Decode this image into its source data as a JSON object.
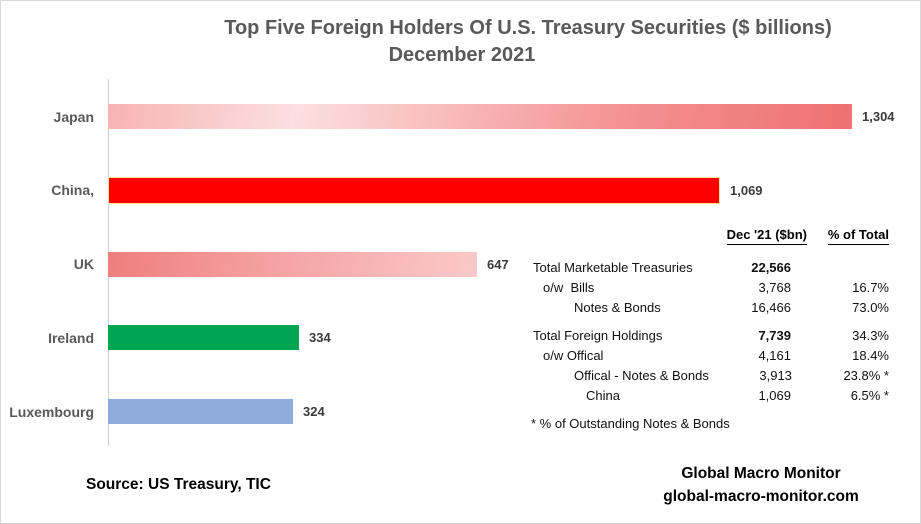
{
  "title": {
    "line1": "Top Five Foreign Holders Of U.S. Treasury Securities ($ billions)",
    "line2": "December 2021"
  },
  "chart_data": {
    "type": "bar",
    "orientation": "horizontal",
    "title": "Top Five Foreign Holders Of U.S. Treasury Securities ($ billions) December 2021",
    "xlabel": "",
    "ylabel": "",
    "xlim": [
      0,
      1400
    ],
    "grid": false,
    "legend": false,
    "categories": [
      "Japan",
      "China,",
      "UK",
      "Ireland",
      "Luxembourg"
    ],
    "values": [
      1304,
      1069,
      647,
      334,
      324
    ],
    "value_labels": [
      "1,304",
      "1,069",
      "647",
      "334",
      "324"
    ],
    "bars": [
      {
        "label": "Japan",
        "value": 1304,
        "value_label": "1,304",
        "fill": {
          "kind": "gradient",
          "angle": "100deg",
          "stops": [
            "#f7b3b3",
            "#fcdfdf 25%",
            "#f49090 70%",
            "#ee7171 100%"
          ]
        }
      },
      {
        "label": "China,",
        "value": 1069,
        "value_label": "1,069",
        "fill": {
          "kind": "solid",
          "color": "#ff0000"
        },
        "border_color": "#ffe699"
      },
      {
        "label": "UK",
        "value": 647,
        "value_label": "647",
        "fill": {
          "kind": "gradient",
          "angle": "100deg",
          "stops": [
            "#ef7e7e",
            "#f5a2a2 45%",
            "#fbc9c9 100%"
          ]
        }
      },
      {
        "label": "Ireland",
        "value": 334,
        "value_label": "334",
        "fill": {
          "kind": "solid",
          "color": "#00a551"
        }
      },
      {
        "label": "Luxembourg",
        "value": 324,
        "value_label": "324",
        "fill": {
          "kind": "solid",
          "color": "#8faadc"
        }
      }
    ]
  },
  "table": {
    "headers": {
      "value_col": "Dec '21 ($bn)",
      "pct_col": "% of Total"
    },
    "rows": [
      {
        "label": "Total Marketable Treasuries",
        "value": "22,566",
        "pct": "",
        "bold_value": true,
        "indent": 0,
        "gap_before": false
      },
      {
        "label": "o/w  Bills",
        "value": "3,768",
        "pct": "16.7%",
        "bold_value": false,
        "indent": 1,
        "gap_before": false
      },
      {
        "label": "Notes & Bonds",
        "value": "16,466",
        "pct": "73.0%",
        "bold_value": false,
        "indent": 2,
        "gap_before": false
      },
      {
        "label": "Total Foreign Holdings",
        "value": "7,739",
        "pct": "34.3%",
        "bold_value": true,
        "indent": 0,
        "gap_before": true
      },
      {
        "label": "o/w Offical",
        "value": "4,161",
        "pct": "18.4%",
        "bold_value": false,
        "indent": 1,
        "gap_before": false
      },
      {
        "label": "Offical - Notes & Bonds",
        "value": "3,913",
        "pct": "23.8% *",
        "bold_value": false,
        "indent": 2,
        "gap_before": false
      },
      {
        "label": "China",
        "value": "1,069",
        "pct": "6.5% *",
        "bold_value": false,
        "indent": 3,
        "gap_before": false
      }
    ],
    "footnote": "* % of Outstanding Notes & Bonds"
  },
  "footer": {
    "source": "Source: US Treasury, TIC",
    "brand_line1": "Global Macro Monitor",
    "brand_line2": "global-macro-monitor.com"
  },
  "colors": {
    "title_text": "#595959",
    "category_label": "#595959",
    "value_label": "#3b3b3b",
    "axis_line": "#cfcfcf",
    "table_text": "#111111",
    "china_bar_border": "#ffe699"
  }
}
